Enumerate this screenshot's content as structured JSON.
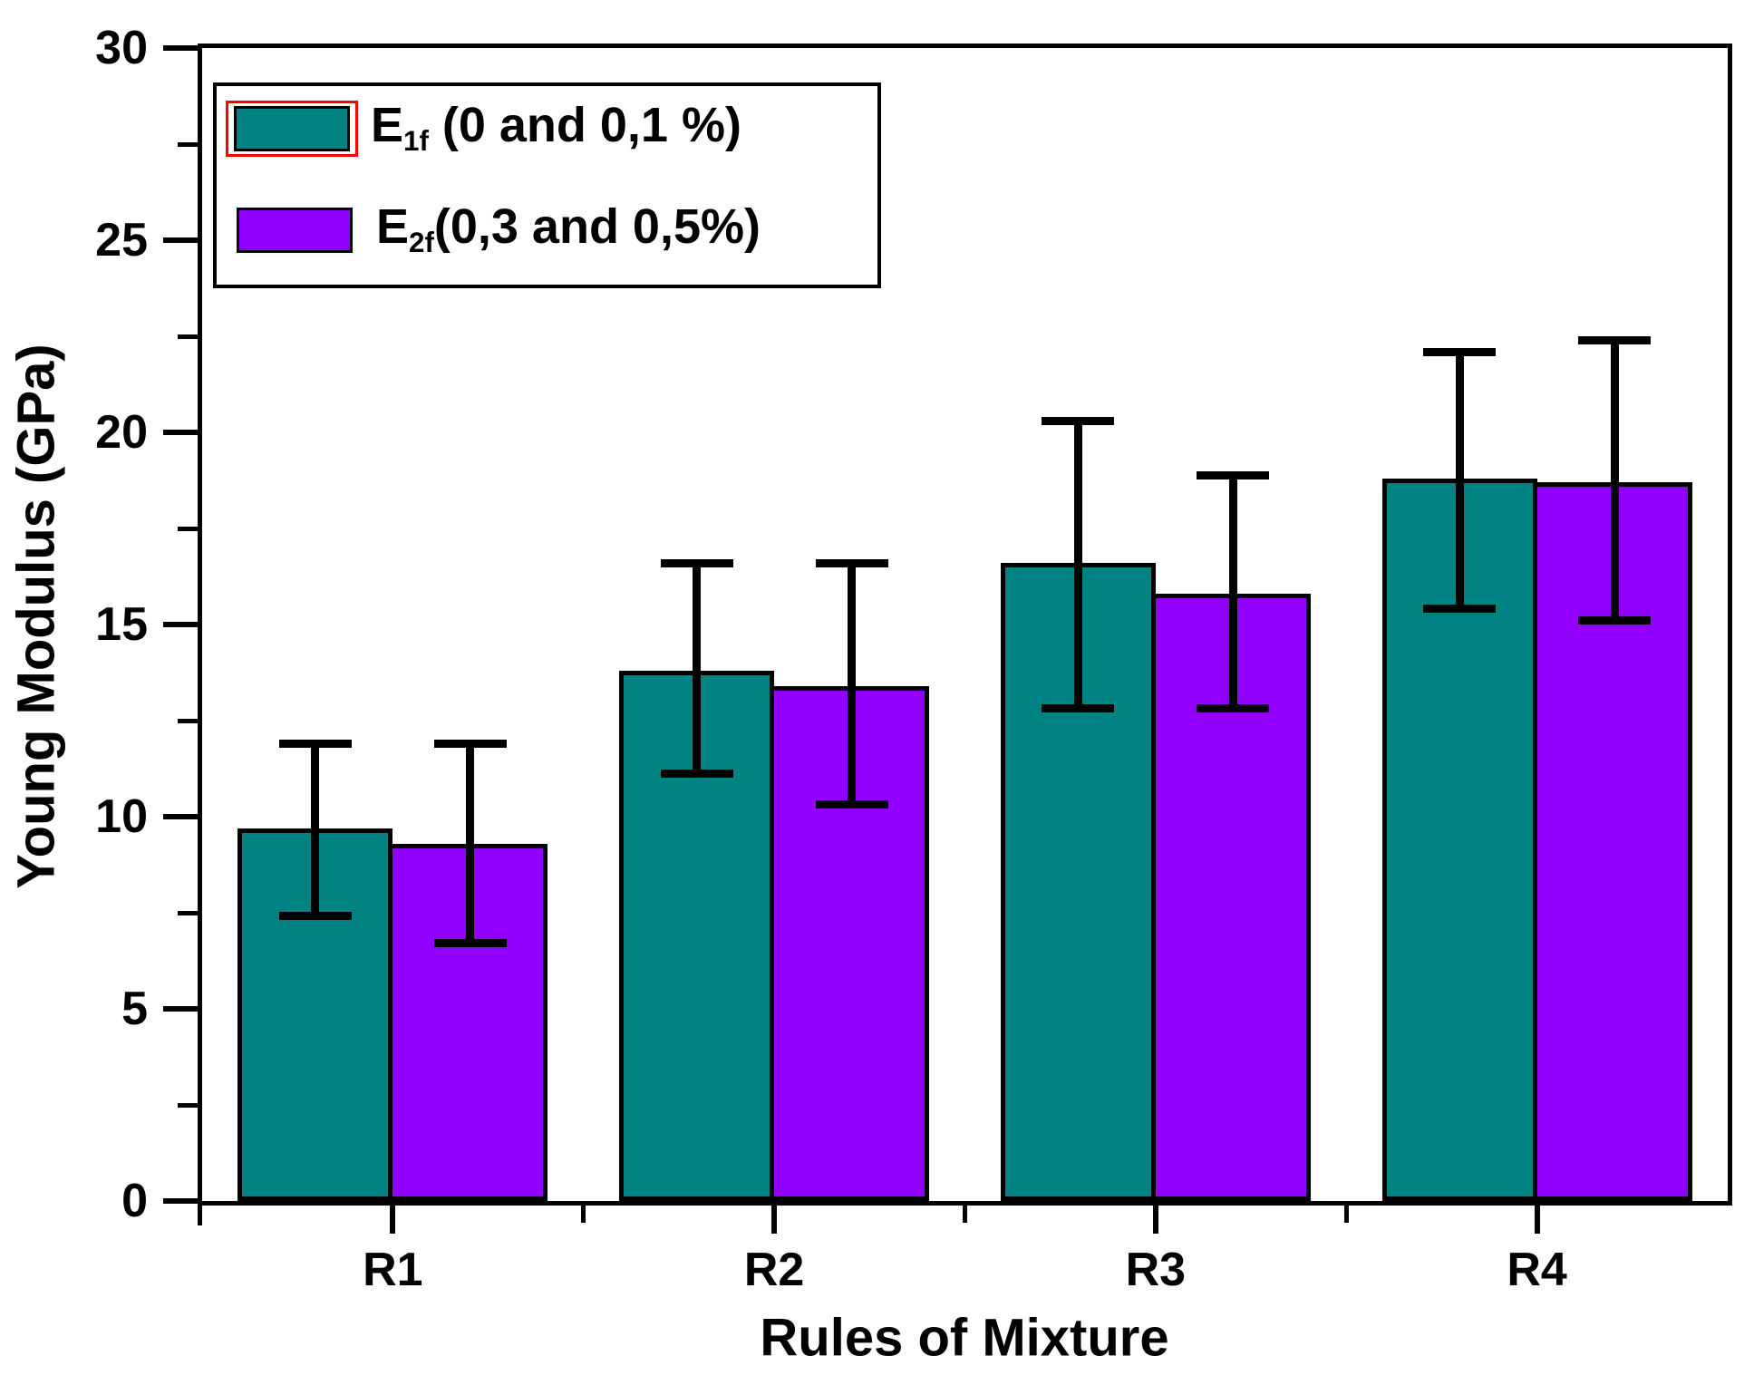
{
  "figure": {
    "background": "#FFFFFF"
  },
  "legend": {
    "entries": [
      {
        "pre": "E",
        "sub": "1f",
        "post": " (0 and 0,1 %)",
        "selected": true
      },
      {
        "pre": "E",
        "sub": "2f",
        "post": "(0,3 and 0,5%)",
        "selected": false
      }
    ],
    "selection_outline_color": "#FF0000"
  },
  "chart_data": {
    "type": "bar",
    "title": "",
    "categories": [
      "R1",
      "R2",
      "R3",
      "R4"
    ],
    "series": [
      {
        "name": "E1f (0 and 0,1 %)",
        "color": "#008282",
        "values": [
          9.7,
          13.8,
          16.6,
          18.8
        ],
        "err_up": [
          2.2,
          2.8,
          3.7,
          3.3
        ],
        "err_down": [
          2.3,
          2.7,
          3.8,
          3.4
        ]
      },
      {
        "name": "E2f (0,3 and 0,5%)",
        "color": "#9100FF",
        "values": [
          9.3,
          13.4,
          15.8,
          18.7
        ],
        "err_up": [
          2.6,
          3.2,
          3.1,
          3.7
        ],
        "err_down": [
          2.6,
          3.1,
          3.0,
          3.6
        ]
      }
    ],
    "xlabel": "Rules of Mixture",
    "ylabel": "Young Modulus (GPa)",
    "ylim": [
      0,
      30
    ],
    "y_major_step": 5,
    "y_minor_step": 2.5,
    "y_tick_labels": [
      "0",
      "5",
      "10",
      "15",
      "20",
      "25",
      "30"
    ],
    "bar_outline": "#000000",
    "errorbar_color": "#000000",
    "legend_position": "top-left",
    "grid": false
  }
}
